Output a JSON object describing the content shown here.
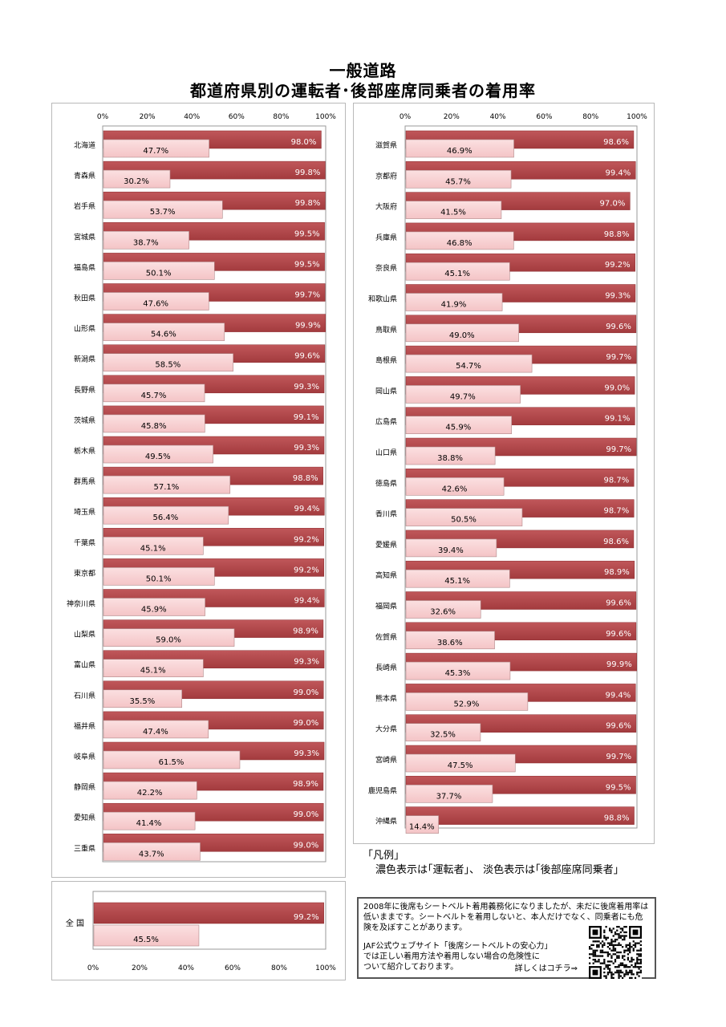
{
  "titles": {
    "line1": "一般道路",
    "line2": "都道府県別の運転者･後部座席同乗者の着用率"
  },
  "colors": {
    "driver": "#a33b3e",
    "driver_light": "#c0575a",
    "passenger": "#f4c4c6",
    "passenger_light": "#fbe0e1"
  },
  "chart_data": [
    {
      "type": "bar",
      "orientation": "horizontal",
      "xlim": [
        0,
        100
      ],
      "ticks": [
        "0%",
        "20%",
        "40%",
        "60%",
        "80%",
        "100%"
      ],
      "series_names": [
        "運転者",
        "後部座席同乗者"
      ],
      "categories": [
        "北海道",
        "青森県",
        "岩手県",
        "宮城県",
        "福島県",
        "秋田県",
        "山形県",
        "新潟県",
        "長野県",
        "茨城県",
        "栃木県",
        "群馬県",
        "埼玉県",
        "千葉県",
        "東京都",
        "神奈川県",
        "山梨県",
        "富山県",
        "石川県",
        "福井県",
        "岐阜県",
        "静岡県",
        "愛知県",
        "三重県"
      ],
      "driver": [
        98.0,
        99.8,
        99.8,
        99.5,
        99.5,
        99.7,
        99.9,
        99.6,
        99.3,
        99.1,
        99.3,
        98.8,
        99.4,
        99.2,
        99.2,
        99.4,
        98.9,
        99.3,
        99.0,
        99.0,
        99.3,
        98.9,
        99.0,
        99.0
      ],
      "passenger": [
        47.7,
        30.2,
        53.7,
        38.7,
        50.1,
        47.6,
        54.6,
        58.5,
        45.7,
        45.8,
        49.5,
        57.1,
        56.4,
        45.1,
        50.1,
        45.9,
        59.0,
        45.1,
        35.5,
        47.4,
        61.5,
        42.2,
        41.4,
        43.7
      ],
      "driver_labels": [
        "98.0%",
        "99.8%",
        "99.8%",
        "99.5%",
        "99.5%",
        "99.7%",
        "99.9%",
        "99.6%",
        "99.3%",
        "99.1%",
        "99.3%",
        "98.8%",
        "99.4%",
        "99.2%",
        "99.2%",
        "99.4%",
        "98.9%",
        "99.3%",
        "99.0%",
        "99.0%",
        "99.3%",
        "98.9%",
        "99.0%",
        "99.0%"
      ],
      "passenger_labels": [
        "47.7%",
        "30.2%",
        "53.7%",
        "38.7%",
        "50.1%",
        "47.6%",
        "54.6%",
        "58.5%",
        "45.7%",
        "45.8%",
        "49.5%",
        "57.1%",
        "56.4%",
        "45.1%",
        "50.1%",
        "45.9%",
        "59.0%",
        "45.1%",
        "35.5%",
        "47.4%",
        "61.5%",
        "42.2%",
        "41.4%",
        "43.7%"
      ]
    },
    {
      "type": "bar",
      "orientation": "horizontal",
      "xlim": [
        0,
        100
      ],
      "ticks": [
        "0%",
        "20%",
        "40%",
        "60%",
        "80%",
        "100%"
      ],
      "series_names": [
        "運転者",
        "後部座席同乗者"
      ],
      "categories": [
        "滋賀県",
        "京都府",
        "大阪府",
        "兵庫県",
        "奈良県",
        "和歌山県",
        "鳥取県",
        "島根県",
        "岡山県",
        "広島県",
        "山口県",
        "徳島県",
        "香川県",
        "愛媛県",
        "高知県",
        "福岡県",
        "佐賀県",
        "長崎県",
        "熊本県",
        "大分県",
        "宮崎県",
        "鹿児島県",
        "沖縄県"
      ],
      "driver": [
        98.6,
        99.4,
        97.0,
        98.8,
        99.2,
        99.3,
        99.6,
        99.7,
        99.0,
        99.1,
        99.7,
        98.7,
        98.7,
        98.6,
        98.9,
        99.6,
        99.6,
        99.9,
        99.4,
        99.6,
        99.7,
        99.5,
        98.8
      ],
      "passenger": [
        46.9,
        45.7,
        41.5,
        46.8,
        45.1,
        41.9,
        49.0,
        54.7,
        49.7,
        45.9,
        38.8,
        42.6,
        50.5,
        39.4,
        45.1,
        32.6,
        38.6,
        45.3,
        52.9,
        32.5,
        47.5,
        37.7,
        14.4
      ],
      "driver_labels": [
        "98.6%",
        "99.4%",
        "97.0%",
        "98.8%",
        "99.2%",
        "99.3%",
        "99.6%",
        "99.7%",
        "99.0%",
        "99.1%",
        "99.7%",
        "98.7%",
        "98.7%",
        "98.6%",
        "98.9%",
        "99.6%",
        "99.6%",
        "99.9%",
        "99.4%",
        "99.6%",
        "99.7%",
        "99.5%",
        "98.8%"
      ],
      "passenger_labels": [
        "46.9%",
        "45.7%",
        "41.5%",
        "46.8%",
        "45.1%",
        "41.9%",
        "49.0%",
        "54.7%",
        "49.7%",
        "45.9%",
        "38.8%",
        "42.6%",
        "50.5%",
        "39.4%",
        "45.1%",
        "32.6%",
        "38.6%",
        "45.3%",
        "52.9%",
        "32.5%",
        "47.5%",
        "37.7%",
        "14.4%"
      ]
    },
    {
      "type": "bar",
      "orientation": "horizontal",
      "xlim": [
        0,
        100
      ],
      "ticks": [
        "0%",
        "20%",
        "40%",
        "60%",
        "80%",
        "100%"
      ],
      "categories": [
        "全 国"
      ],
      "driver": [
        99.2
      ],
      "passenger": [
        45.5
      ],
      "driver_labels": [
        "99.2%"
      ],
      "passenger_labels": [
        "45.5%"
      ]
    }
  ],
  "legend": {
    "heading": "「凡例」",
    "text": "濃色表示は｢運転者｣、 淡色表示は｢後部座席同乗者｣"
  },
  "note": {
    "para1": "2008年に後席もシートベルト着用義務化になりましたが、未だに後席着用率は低いままです。シートベルトを着用しないと、本人だけでなく、同乗者にも危険を及ぼすことがあります。",
    "para2_l1": "JAF公式ウェブサイト「後席シートベルトの安心力」",
    "para2_l2": "では正しい着用方法や着用しない場合の危険性に",
    "para2_l3": "ついて紹介しております。",
    "link": "詳しくはコチラ⇒",
    "qr_icon": "qr-code-icon"
  }
}
